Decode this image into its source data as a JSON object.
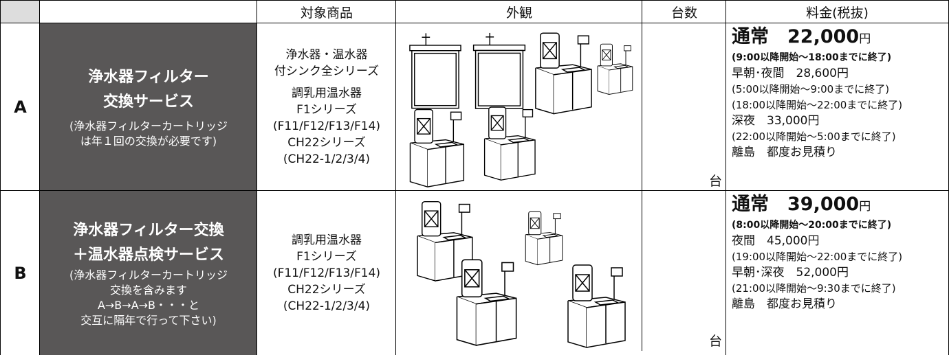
{
  "header": {
    "product": "対象商品",
    "appearance": "外観",
    "quantity": "台数",
    "price": "料金(税抜)"
  },
  "rows": [
    {
      "id": "A",
      "service": {
        "title": [
          "浄水器フィルター",
          "交換サービス"
        ],
        "note": [
          "(浄水器フィルターカートリッジ",
          "は年１回の交換が必要です)"
        ]
      },
      "products": [
        [
          "浄水器・温水器",
          "付シンク全シリーズ"
        ],
        [
          "調乳用温水器",
          "F1シリーズ",
          "(F11/F12/F13/F14)",
          "CH22シリーズ",
          "(CH22-1/2/3/4)"
        ]
      ],
      "unit": "台",
      "price": {
        "main_label": "通常",
        "main_amount": "22,000",
        "main_unit": "円",
        "main_hours": "(9:00以降開始～18:00までに終了)",
        "lines": [
          "早朝･夜間　28,600円",
          "(5:00以降開始～9:00までに終了)",
          "(18:00以降開始～22:00までに終了)",
          "深夜　33,000円",
          "(22:00以降開始～5:00までに終了)",
          "離島　都度お見積り"
        ]
      }
    },
    {
      "id": "B",
      "service": {
        "title": [
          "浄水器フィルター交換",
          "＋温水器点検サービス"
        ],
        "note": [
          "(浄水器フィルターカートリッジ",
          "交換を含みます",
          "A→B→A→B・・・と",
          "交互に隔年で行って下さい)"
        ]
      },
      "products": [
        [
          "調乳用温水器",
          "F1シリーズ",
          "(F11/F12/F13/F14)",
          "CH22シリーズ",
          "(CH22-1/2/3/4)"
        ]
      ],
      "unit": "台",
      "price": {
        "main_label": "通常",
        "main_amount": "39,000",
        "main_unit": "円",
        "main_hours": "(8:00以降開始～20:00までに終了)",
        "lines": [
          "夜間　45,000円",
          "(19:00以降開始～22:00までに終了)",
          "早朝･深夜　52,000円",
          "(21:00以降開始～9:30までに終了)",
          "離島　都度お見積り"
        ]
      }
    }
  ]
}
